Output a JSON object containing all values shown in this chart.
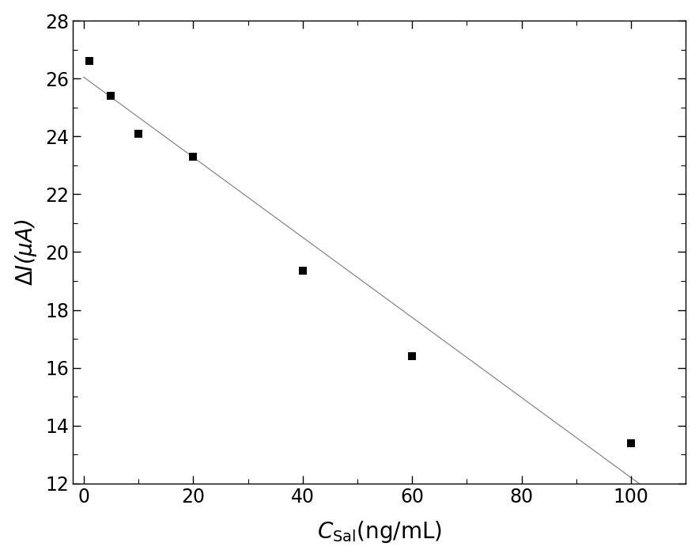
{
  "x_data": [
    1,
    5,
    10,
    20,
    40,
    60,
    100
  ],
  "y_data": [
    26.6,
    25.4,
    24.1,
    23.3,
    19.35,
    16.4,
    13.4
  ],
  "line_x": [
    0,
    108
  ],
  "line_slope": -0.1385,
  "line_intercept": 26.05,
  "marker": "s",
  "marker_size": 7,
  "marker_color": "black",
  "line_color": "#888888",
  "line_width": 0.9,
  "xlim": [
    -2,
    110
  ],
  "ylim": [
    12,
    28
  ],
  "xticks": [
    0,
    20,
    40,
    60,
    80,
    100
  ],
  "yticks": [
    12,
    14,
    16,
    18,
    20,
    22,
    24,
    26,
    28
  ],
  "bg_color": "#ffffff",
  "tick_fontsize": 17,
  "label_fontsize": 20,
  "figure_width": 8.84,
  "figure_height": 7.05,
  "dpi": 100
}
